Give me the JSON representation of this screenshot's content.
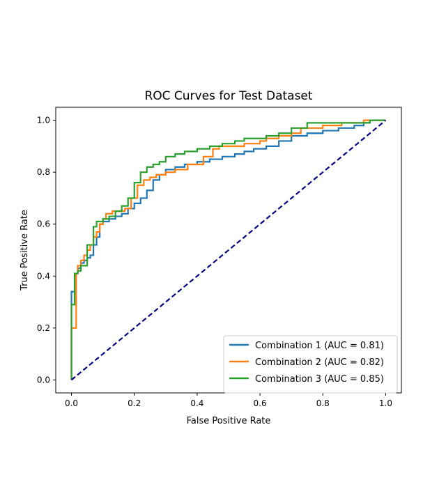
{
  "chart_data": {
    "type": "line",
    "title": "ROC Curves for Test Dataset",
    "xlabel": "False Positive Rate",
    "ylabel": "True Positive Rate",
    "xlim": [
      -0.05,
      1.05
    ],
    "ylim": [
      -0.05,
      1.05
    ],
    "xticks": [
      0.0,
      0.2,
      0.4,
      0.6,
      0.8,
      1.0
    ],
    "yticks": [
      0.0,
      0.2,
      0.4,
      0.6,
      0.8,
      1.0
    ],
    "xtick_labels": [
      "0.0",
      "0.2",
      "0.4",
      "0.6",
      "0.8",
      "1.0"
    ],
    "ytick_labels": [
      "0.0",
      "0.2",
      "0.4",
      "0.6",
      "0.8",
      "1.0"
    ],
    "grid": false,
    "legend_position": "bottom-right",
    "series": [
      {
        "name": "Combination 1 (AUC = 0.81)",
        "color": "#1f77b4",
        "x": [
          0.0,
          0.01,
          0.012,
          0.02,
          0.03,
          0.04,
          0.05,
          0.06,
          0.07,
          0.08,
          0.09,
          0.1,
          0.12,
          0.14,
          0.16,
          0.18,
          0.2,
          0.22,
          0.24,
          0.26,
          0.28,
          0.3,
          0.33,
          0.36,
          0.4,
          0.44,
          0.48,
          0.52,
          0.55,
          0.58,
          0.62,
          0.66,
          0.7,
          0.75,
          0.8,
          0.85,
          0.9,
          0.93,
          0.95,
          0.98,
          1.0
        ],
        "y": [
          0.0,
          0.34,
          0.4,
          0.41,
          0.43,
          0.45,
          0.46,
          0.47,
          0.48,
          0.52,
          0.55,
          0.6,
          0.61,
          0.62,
          0.63,
          0.64,
          0.66,
          0.68,
          0.7,
          0.73,
          0.77,
          0.79,
          0.81,
          0.82,
          0.83,
          0.84,
          0.85,
          0.86,
          0.87,
          0.88,
          0.89,
          0.9,
          0.92,
          0.94,
          0.95,
          0.96,
          0.97,
          0.98,
          0.99,
          1.0,
          1.0
        ]
      },
      {
        "name": "Combination 2 (AUC = 0.82)",
        "color": "#ff7f0e",
        "x": [
          0.0,
          0.015,
          0.02,
          0.03,
          0.04,
          0.05,
          0.06,
          0.07,
          0.08,
          0.09,
          0.1,
          0.11,
          0.13,
          0.15,
          0.17,
          0.19,
          0.21,
          0.23,
          0.25,
          0.27,
          0.3,
          0.33,
          0.37,
          0.42,
          0.45,
          0.47,
          0.5,
          0.55,
          0.6,
          0.62,
          0.66,
          0.7,
          0.73,
          0.76,
          0.8,
          0.86,
          0.9,
          0.93,
          0.95,
          0.97,
          1.0
        ],
        "y": [
          0.0,
          0.2,
          0.41,
          0.44,
          0.46,
          0.48,
          0.5,
          0.52,
          0.55,
          0.57,
          0.6,
          0.62,
          0.64,
          0.65,
          0.65,
          0.66,
          0.7,
          0.75,
          0.77,
          0.78,
          0.79,
          0.8,
          0.81,
          0.83,
          0.86,
          0.89,
          0.9,
          0.9,
          0.91,
          0.92,
          0.93,
          0.94,
          0.95,
          0.97,
          0.97,
          0.98,
          0.99,
          0.99,
          1.0,
          1.0,
          1.0
        ]
      },
      {
        "name": "Combination 3 (AUC = 0.85)",
        "color": "#2ca02c",
        "x": [
          0.0,
          0.0,
          0.01,
          0.02,
          0.03,
          0.05,
          0.07,
          0.08,
          0.09,
          0.1,
          0.12,
          0.14,
          0.16,
          0.18,
          0.2,
          0.22,
          0.24,
          0.26,
          0.28,
          0.3,
          0.33,
          0.36,
          0.4,
          0.44,
          0.48,
          0.52,
          0.55,
          0.58,
          0.62,
          0.66,
          0.7,
          0.75,
          0.8,
          0.85,
          0.9,
          0.95,
          1.0
        ],
        "y": [
          0.0,
          0.28,
          0.29,
          0.41,
          0.42,
          0.44,
          0.52,
          0.59,
          0.61,
          0.61,
          0.62,
          0.63,
          0.65,
          0.67,
          0.7,
          0.76,
          0.8,
          0.82,
          0.83,
          0.84,
          0.86,
          0.87,
          0.88,
          0.89,
          0.9,
          0.91,
          0.92,
          0.93,
          0.93,
          0.94,
          0.95,
          0.97,
          0.99,
          0.99,
          0.99,
          0.99,
          1.0
        ]
      },
      {
        "name": "",
        "color": "#000080",
        "dashed": true,
        "x": [
          0.0,
          1.0
        ],
        "y": [
          0.0,
          1.0
        ]
      }
    ]
  }
}
